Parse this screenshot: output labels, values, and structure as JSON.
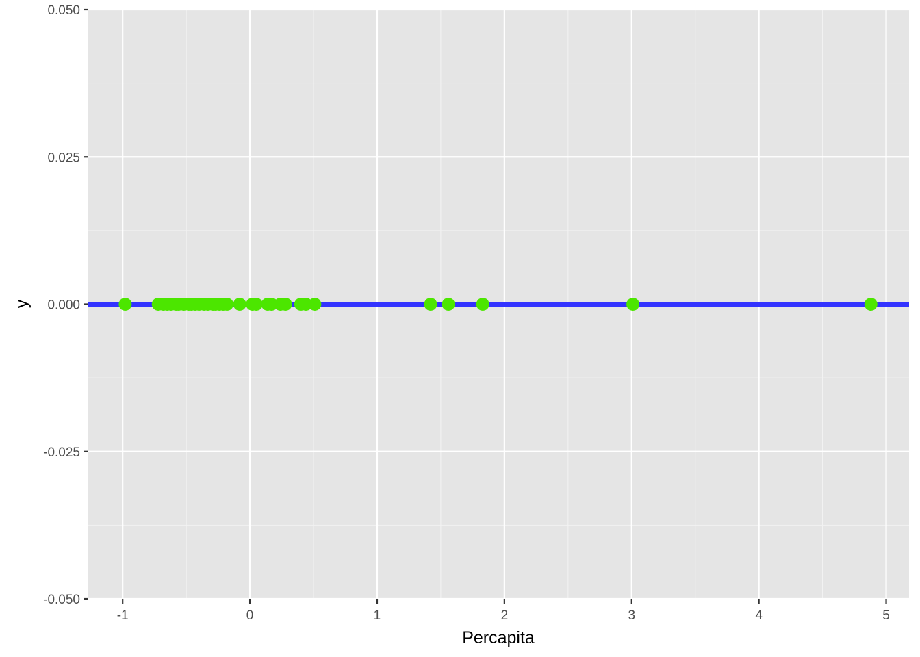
{
  "chart_data": {
    "type": "scatter",
    "xlabel": "Percapita",
    "ylabel": "y",
    "xlim": [
      -1.27,
      5.18
    ],
    "ylim": [
      -0.05,
      0.05
    ],
    "x_ticks": [
      -1,
      0,
      1,
      2,
      3,
      4,
      5
    ],
    "x_tick_labels": [
      "-1",
      "0",
      "1",
      "2",
      "3",
      "4",
      "5"
    ],
    "y_ticks": [
      -0.05,
      -0.025,
      0,
      0.025,
      0.05
    ],
    "y_tick_labels": [
      "-0.050",
      "-0.025",
      "0.000",
      "0.025",
      "0.050"
    ],
    "grid": true,
    "reference_line": {
      "y": 0,
      "color": "#3333ff"
    },
    "point_color": "#4ce600",
    "panel_background": "#e5e5e5",
    "points": [
      {
        "x": -0.98,
        "y": 0
      },
      {
        "x": -0.72,
        "y": 0
      },
      {
        "x": -0.68,
        "y": 0
      },
      {
        "x": -0.65,
        "y": 0
      },
      {
        "x": -0.62,
        "y": 0
      },
      {
        "x": -0.58,
        "y": 0
      },
      {
        "x": -0.56,
        "y": 0
      },
      {
        "x": -0.52,
        "y": 0
      },
      {
        "x": -0.48,
        "y": 0
      },
      {
        "x": -0.46,
        "y": 0
      },
      {
        "x": -0.43,
        "y": 0
      },
      {
        "x": -0.4,
        "y": 0
      },
      {
        "x": -0.36,
        "y": 0
      },
      {
        "x": -0.33,
        "y": 0
      },
      {
        "x": -0.29,
        "y": 0
      },
      {
        "x": -0.27,
        "y": 0
      },
      {
        "x": -0.24,
        "y": 0
      },
      {
        "x": -0.21,
        "y": 0
      },
      {
        "x": -0.18,
        "y": 0
      },
      {
        "x": -0.08,
        "y": 0
      },
      {
        "x": 0.02,
        "y": 0
      },
      {
        "x": 0.05,
        "y": 0
      },
      {
        "x": 0.14,
        "y": 0
      },
      {
        "x": 0.17,
        "y": 0
      },
      {
        "x": 0.24,
        "y": 0
      },
      {
        "x": 0.28,
        "y": 0
      },
      {
        "x": 0.4,
        "y": 0
      },
      {
        "x": 0.44,
        "y": 0
      },
      {
        "x": 0.51,
        "y": 0
      },
      {
        "x": 1.42,
        "y": 0
      },
      {
        "x": 1.56,
        "y": 0
      },
      {
        "x": 1.83,
        "y": 0
      },
      {
        "x": 3.01,
        "y": 0
      },
      {
        "x": 4.88,
        "y": 0
      }
    ]
  }
}
